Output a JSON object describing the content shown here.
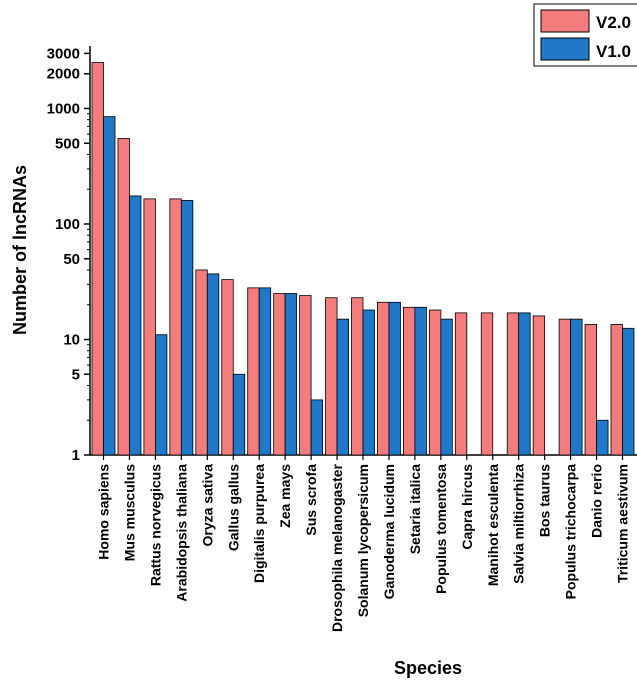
{
  "chart_data": {
    "type": "bar",
    "xlabel": "Species",
    "ylabel": "Number of lncRNAs",
    "yscale": "log",
    "ylim": [
      1,
      3000
    ],
    "yticks": [
      1,
      5,
      10,
      50,
      100,
      500,
      1000,
      2000,
      3000
    ],
    "ytick_labels": [
      "1",
      "5",
      "10",
      "50",
      "100",
      "500",
      "1000",
      "2000",
      "3000"
    ],
    "legend_placement": "top-right",
    "categories": [
      "Homo sapiens",
      "Mus musculus",
      "Rattus norvegicus",
      "Arabidopsis thaliana",
      "Oryza sativa",
      "Gallus gallus",
      "Digitalis purpurea",
      "Zea mays",
      "Sus scrofa",
      "Drosophila melanogaster",
      "Solanum lycopersicum",
      "Ganoderma lucidum",
      "Setaria italica",
      "Populus tomentosa",
      "Capra hircus",
      "Manihot esculenta",
      "Salvia miltiorrhiza",
      "Bos taurus",
      "Populus trichocarpa",
      "Danio rerio",
      "Triticum aestivum"
    ],
    "series": [
      {
        "name": "V2.0",
        "color": "#f47c7c",
        "values": [
          2500,
          550,
          165,
          165,
          40,
          33,
          28,
          25,
          24,
          23,
          23,
          21,
          19,
          18,
          17,
          17,
          17,
          16,
          15,
          13.5,
          13.5
        ]
      },
      {
        "name": "V1.0",
        "color": "#1f78c8",
        "values": [
          850,
          175,
          11,
          160,
          37,
          5,
          28,
          25,
          3,
          15,
          18,
          21,
          19,
          15,
          null,
          null,
          17,
          null,
          15,
          2,
          12.5
        ]
      }
    ]
  }
}
